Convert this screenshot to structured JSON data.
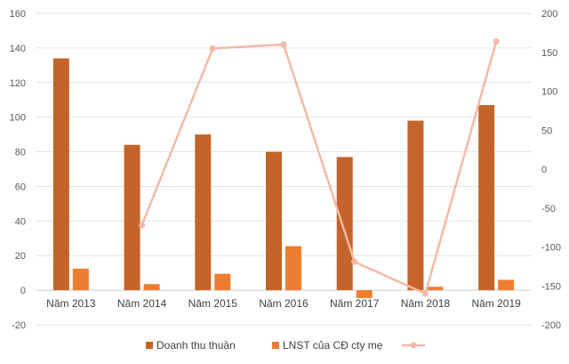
{
  "chart_data": {
    "type": "bar",
    "categories": [
      "Năm 2013",
      "Năm 2014",
      "Năm 2015",
      "Năm 2016",
      "Năm 2017",
      "Năm 2018",
      "Năm 2019"
    ],
    "series": [
      {
        "name": "Doanh thu thuần",
        "kind": "bar",
        "axis": "left",
        "color": "#C5642A",
        "values": [
          134,
          84,
          90,
          80,
          77,
          98,
          107
        ]
      },
      {
        "name": "LNST của CĐ cty mẹ",
        "kind": "bar",
        "axis": "left",
        "color": "#ED7D31",
        "values": [
          12.5,
          3.5,
          9.5,
          25.5,
          -4.5,
          2,
          6
        ]
      },
      {
        "name": "",
        "kind": "line",
        "axis": "right",
        "color": "#F4B9A5",
        "values": [
          null,
          -72,
          155,
          160,
          -119,
          -160,
          164
        ]
      }
    ],
    "ylim_left": [
      -20,
      160
    ],
    "yticks_left": [
      -20,
      0,
      20,
      40,
      60,
      80,
      100,
      120,
      140,
      160
    ],
    "ylim_right": [
      -200,
      200
    ],
    "yticks_right": [
      -200,
      -150,
      -100,
      -50,
      0,
      50,
      100,
      150,
      200
    ],
    "grid": true,
    "legend_position": "bottom"
  }
}
